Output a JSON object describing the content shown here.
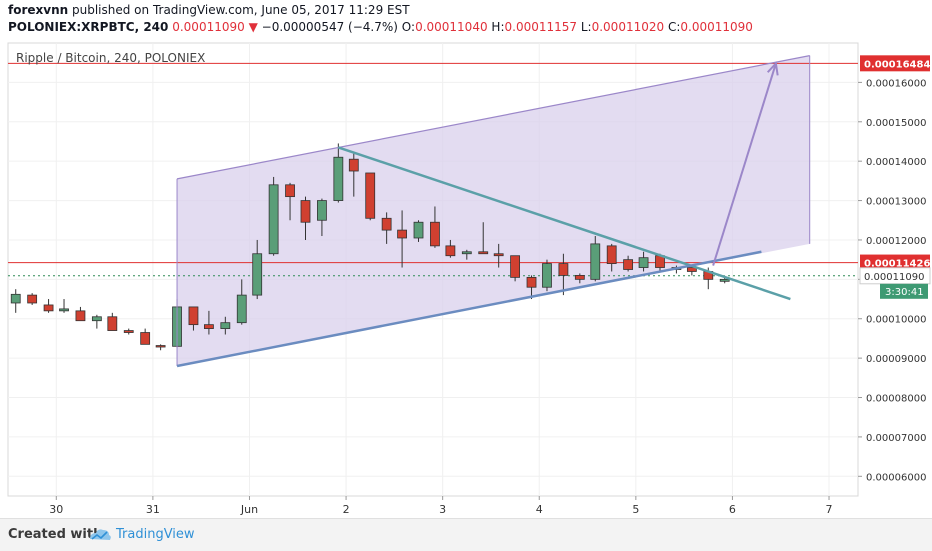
{
  "header": {
    "author": "forexvnn",
    "published_text": "published on TradingView.com, June 05, 2017 11:29 EST",
    "symbol": "POLONIEX:XRPBTC, 240",
    "last": "0.00011090",
    "change_arrow": "▼",
    "change": "−0.00000547 (−4.7%)",
    "o_label": "O:",
    "o_value": "0.00011040",
    "h_label": "H:",
    "h_value": "0.00011157",
    "l_label": "L:",
    "l_value": "0.00011020",
    "c_label": "C:",
    "c_value": "0.00011090"
  },
  "footer": {
    "created_with": "Created with",
    "brand": "TradingView"
  },
  "colors": {
    "up": "#5a9e78",
    "down": "#d04030",
    "channel_fill": "#d9d0ec",
    "channel_line": "#9b87c9",
    "triangle_line": "#5ba0a8",
    "support_line": "#6b8cc0",
    "arrow": "#9b87c9",
    "hline": "#e03030",
    "dotted": "#2e8b57",
    "countdown_bg": "#3e9a73"
  },
  "chart_data": {
    "type": "candlestick",
    "title": "Ripple / Bitcoin, 240, POLONIEX",
    "ylim": [
      5.5e-05,
      0.00017
    ],
    "y_ticks": [
      "0.00016000",
      "0.00015000",
      "0.00014000",
      "0.00013000",
      "0.00012000",
      "0.00011000",
      "0.00010000",
      "0.00009000",
      "0.00008000",
      "0.00007000",
      "0.00006000"
    ],
    "x_ticks": [
      {
        "label": "30",
        "x": 0.5
      },
      {
        "label": "31",
        "x": 1.5
      },
      {
        "label": "Jun",
        "x": 2.5
      },
      {
        "label": "2",
        "x": 3.5
      },
      {
        "label": "3",
        "x": 4.5
      },
      {
        "label": "4",
        "x": 5.5
      },
      {
        "label": "5",
        "x": 6.5
      },
      {
        "label": "6",
        "x": 7.5
      },
      {
        "label": "7",
        "x": 8.5
      }
    ],
    "x_range": [
      0.0,
      8.8
    ],
    "candles": [
      {
        "x": 0.08,
        "o": 0.000104,
        "h": 0.0001075,
        "l": 0.0001015,
        "c": 0.0001062
      },
      {
        "x": 0.25,
        "o": 0.000106,
        "h": 0.0001065,
        "l": 0.0001035,
        "c": 0.000104
      },
      {
        "x": 0.42,
        "o": 0.0001035,
        "h": 0.000105,
        "l": 0.0001015,
        "c": 0.000102
      },
      {
        "x": 0.58,
        "o": 0.000102,
        "h": 0.000105,
        "l": 0.0001015,
        "c": 0.0001025
      },
      {
        "x": 0.75,
        "o": 0.000102,
        "h": 0.000103,
        "l": 9.95e-05,
        "c": 9.95e-05
      },
      {
        "x": 0.92,
        "o": 9.95e-05,
        "h": 0.000101,
        "l": 9.75e-05,
        "c": 0.0001005
      },
      {
        "x": 1.08,
        "o": 0.0001005,
        "h": 0.0001015,
        "l": 9.7e-05,
        "c": 9.7e-05
      },
      {
        "x": 1.25,
        "o": 9.7e-05,
        "h": 9.75e-05,
        "l": 9.6e-05,
        "c": 9.65e-05
      },
      {
        "x": 1.42,
        "o": 9.65e-05,
        "h": 9.75e-05,
        "l": 9.35e-05,
        "c": 9.35e-05
      },
      {
        "x": 1.58,
        "o": 9.32e-05,
        "h": 9.35e-05,
        "l": 9.2e-05,
        "c": 9.3e-05
      },
      {
        "x": 1.75,
        "o": 9.3e-05,
        "h": 0.000105,
        "l": 9.25e-05,
        "c": 0.000103
      },
      {
        "x": 1.92,
        "o": 0.000103,
        "h": 0.000103,
        "l": 9.7e-05,
        "c": 9.85e-05
      },
      {
        "x": 2.08,
        "o": 9.85e-05,
        "h": 0.000102,
        "l": 9.6e-05,
        "c": 9.75e-05
      },
      {
        "x": 2.25,
        "o": 9.75e-05,
        "h": 0.0001005,
        "l": 9.6e-05,
        "c": 9.9e-05
      },
      {
        "x": 2.42,
        "o": 9.9e-05,
        "h": 0.00011,
        "l": 9.85e-05,
        "c": 0.000106
      },
      {
        "x": 2.58,
        "o": 0.000106,
        "h": 0.00012,
        "l": 0.000105,
        "c": 0.0001165
      },
      {
        "x": 2.75,
        "o": 0.0001165,
        "h": 0.000136,
        "l": 0.000116,
        "c": 0.000134
      },
      {
        "x": 2.92,
        "o": 0.000134,
        "h": 0.0001345,
        "l": 0.000125,
        "c": 0.000131
      },
      {
        "x": 3.08,
        "o": 0.00013,
        "h": 0.000131,
        "l": 0.00012,
        "c": 0.0001245
      },
      {
        "x": 3.25,
        "o": 0.000125,
        "h": 0.0001305,
        "l": 0.000121,
        "c": 0.00013
      },
      {
        "x": 3.42,
        "o": 0.00013,
        "h": 0.0001445,
        "l": 0.0001295,
        "c": 0.000141
      },
      {
        "x": 3.58,
        "o": 0.0001405,
        "h": 0.000142,
        "l": 0.000131,
        "c": 0.0001375
      },
      {
        "x": 3.75,
        "o": 0.000137,
        "h": 0.000137,
        "l": 0.000125,
        "c": 0.0001255
      },
      {
        "x": 3.92,
        "o": 0.0001255,
        "h": 0.000127,
        "l": 0.000119,
        "c": 0.0001225
      },
      {
        "x": 4.08,
        "o": 0.0001225,
        "h": 0.0001275,
        "l": 0.000113,
        "c": 0.0001205
      },
      {
        "x": 4.25,
        "o": 0.0001205,
        "h": 0.000125,
        "l": 0.0001195,
        "c": 0.0001245
      },
      {
        "x": 4.42,
        "o": 0.0001245,
        "h": 0.0001285,
        "l": 0.000118,
        "c": 0.0001185
      },
      {
        "x": 4.58,
        "o": 0.0001185,
        "h": 0.00012,
        "l": 0.0001155,
        "c": 0.000116
      },
      {
        "x": 4.75,
        "o": 0.0001165,
        "h": 0.0001175,
        "l": 0.000115,
        "c": 0.000117
      },
      {
        "x": 4.92,
        "o": 0.000117,
        "h": 0.0001245,
        "l": 0.0001165,
        "c": 0.0001165
      },
      {
        "x": 5.08,
        "o": 0.0001165,
        "h": 0.000119,
        "l": 0.000113,
        "c": 0.000116
      },
      {
        "x": 5.25,
        "o": 0.000116,
        "h": 0.000116,
        "l": 0.0001095,
        "c": 0.0001105
      },
      {
        "x": 5.42,
        "o": 0.0001105,
        "h": 0.000111,
        "l": 0.000105,
        "c": 0.000108
      },
      {
        "x": 5.58,
        "o": 0.000108,
        "h": 0.000115,
        "l": 0.000107,
        "c": 0.000114
      },
      {
        "x": 5.75,
        "o": 0.000114,
        "h": 0.0001165,
        "l": 0.000106,
        "c": 0.000111
      },
      {
        "x": 5.92,
        "o": 0.000111,
        "h": 0.0001115,
        "l": 0.000109,
        "c": 0.00011
      },
      {
        "x": 6.08,
        "o": 0.00011,
        "h": 0.000121,
        "l": 0.0001095,
        "c": 0.000119
      },
      {
        "x": 6.25,
        "o": 0.0001185,
        "h": 0.000119,
        "l": 0.000112,
        "c": 0.000114
      },
      {
        "x": 6.42,
        "o": 0.000115,
        "h": 0.000116,
        "l": 0.000112,
        "c": 0.0001125
      },
      {
        "x": 6.58,
        "o": 0.000113,
        "h": 0.000117,
        "l": 0.000112,
        "c": 0.0001155
      },
      {
        "x": 6.75,
        "o": 0.000116,
        "h": 0.0001165,
        "l": 0.000112,
        "c": 0.000113
      },
      {
        "x": 6.92,
        "o": 0.0001125,
        "h": 0.0001135,
        "l": 0.0001115,
        "c": 0.000113
      },
      {
        "x": 7.08,
        "o": 0.000113,
        "h": 0.0001135,
        "l": 0.000111,
        "c": 0.000112
      },
      {
        "x": 7.25,
        "o": 0.000112,
        "h": 0.000113,
        "l": 0.0001075,
        "c": 0.00011
      },
      {
        "x": 7.42,
        "o": 0.0001095,
        "h": 0.0001105,
        "l": 0.000109,
        "c": 0.00011
      }
    ],
    "channel": {
      "upper": [
        [
          1.75,
          0.0001355
        ],
        [
          8.3,
          0.0001668
        ]
      ],
      "lower_end": [
        8.3,
        0.000119
      ]
    },
    "triangle_top": [
      [
        3.42,
        0.0001435
      ],
      [
        8.1,
        0.000105
      ]
    ],
    "triangle_bottom": [
      [
        1.75,
        8.8e-05
      ],
      [
        7.8,
        0.000117
      ]
    ],
    "target_arrow": [
      [
        7.3,
        0.0001135
      ],
      [
        7.95,
        0.0001648
      ]
    ],
    "hlines": [
      {
        "value": 0.00016484,
        "label": "0.00016484"
      },
      {
        "value": 0.00011426,
        "label": "0.00011426"
      }
    ],
    "last_price": {
      "value": 0.0001109,
      "label": "0.00011090",
      "countdown": "3:30:41"
    }
  }
}
